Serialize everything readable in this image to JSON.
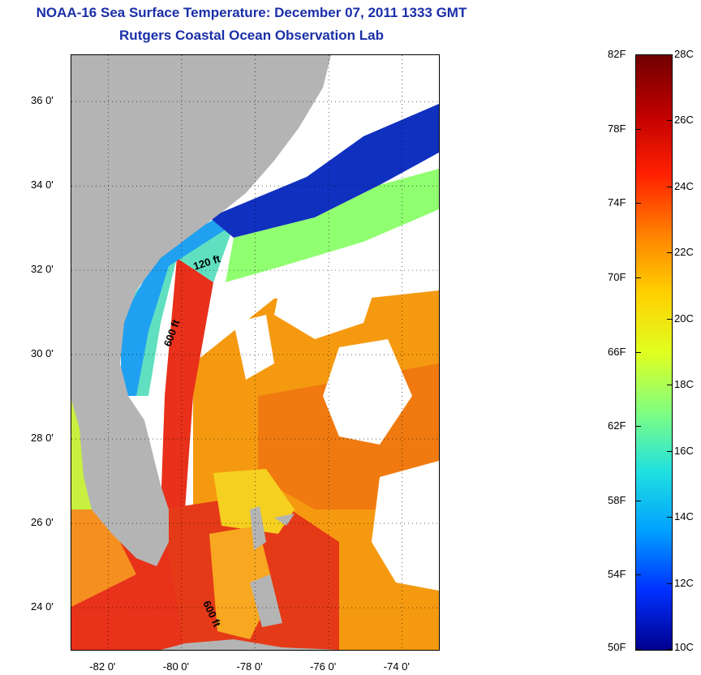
{
  "header": {
    "title": "NOAA-16 Sea Surface Temperature:  December 07, 2011 1333 GMT",
    "subtitle": "Rutgers Coastal Ocean Observation Lab"
  },
  "map": {
    "lon_range": [
      -83.0,
      -73.0
    ],
    "lat_range": [
      23.0,
      37.1
    ],
    "lon_ticks": [
      "-82 0'",
      "-80 0'",
      "-78 0'",
      "-76 0'",
      "-74 0'"
    ],
    "lat_ticks": [
      "36 0'",
      "34 0'",
      "32 0'",
      "30 0'",
      "28 0'",
      "26 0'",
      "24 0'"
    ],
    "contour_labels": [
      "120 ft",
      "600 ft",
      "600 ft"
    ],
    "land_color": "#b4b4b4",
    "cloud_color": "#ffffff",
    "grid": "dotted"
  },
  "colorbar": {
    "celsius_range": [
      10,
      28
    ],
    "fahrenheit_range": [
      50,
      82
    ],
    "celsius_labels": [
      "28C",
      "26C",
      "24C",
      "22C",
      "20C",
      "18C",
      "16C",
      "14C",
      "12C",
      "10C"
    ],
    "fahrenheit_labels": [
      "82F",
      "78F",
      "74F",
      "70F",
      "66F",
      "62F",
      "58F",
      "54F",
      "50F"
    ],
    "colors": [
      "#00008f",
      "#0030ff",
      "#00a0ff",
      "#20e0e0",
      "#80ff80",
      "#e0ff20",
      "#ffd000",
      "#ff8000",
      "#ff2000",
      "#c00000",
      "#700000"
    ]
  }
}
